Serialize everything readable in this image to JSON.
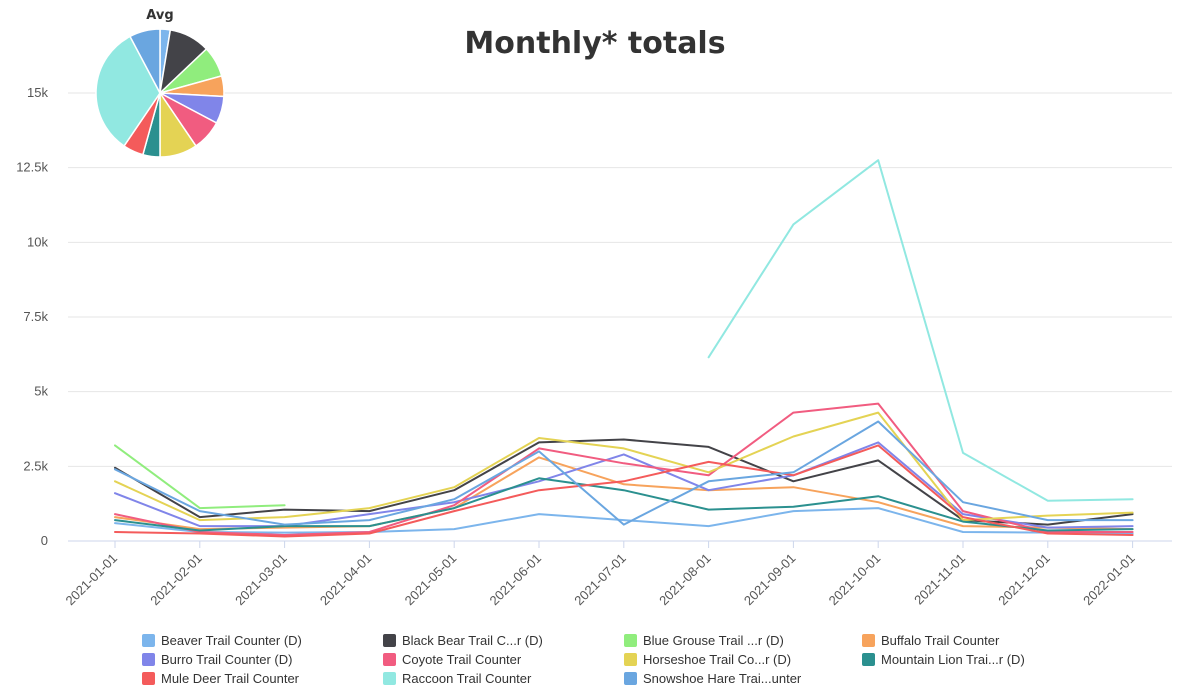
{
  "chart_data": {
    "type": "line",
    "title": "Monthly* totals",
    "x": [
      "2021-01-01",
      "2021-02-01",
      "2021-03-01",
      "2021-04-01",
      "2021-05-01",
      "2021-06-01",
      "2021-07-01",
      "2021-08-01",
      "2021-09-01",
      "2021-10-01",
      "2021-11-01",
      "2021-12-01",
      "2022-01-01"
    ],
    "ylim": [
      0,
      15000
    ],
    "yticks": [
      {
        "value": 0,
        "label": "0"
      },
      {
        "value": 2500,
        "label": "2.5k"
      },
      {
        "value": 5000,
        "label": "5k"
      },
      {
        "value": 7500,
        "label": "7.5k"
      },
      {
        "value": 10000,
        "label": "10k"
      },
      {
        "value": 12500,
        "label": "12.5k"
      },
      {
        "value": 15000,
        "label": "15k"
      }
    ],
    "grid": true,
    "legend_position": "bottom",
    "series": [
      {
        "name": "Beaver Trail Counter (D)",
        "color": "#7cb5ec",
        "values": [
          600,
          300,
          280,
          300,
          400,
          900,
          700,
          500,
          1000,
          1100,
          300,
          280,
          250
        ]
      },
      {
        "name": "Black Bear Trail C...r (D)",
        "color": "#434348",
        "values": [
          2450,
          800,
          1050,
          1000,
          1700,
          3300,
          3400,
          3150,
          2000,
          2700,
          700,
          550,
          900
        ]
      },
      {
        "name": "Blue Grouse Trail ...r (D)",
        "color": "#90ed7d",
        "values": [
          3200,
          1100,
          1200,
          null,
          null,
          null,
          null,
          null,
          null,
          null,
          null,
          null,
          null
        ]
      },
      {
        "name": "Buffalo Trail Counter",
        "color": "#f7a35c",
        "values": [
          800,
          400,
          450,
          500,
          1100,
          2800,
          1900,
          1700,
          1800,
          1300,
          500,
          450,
          400
        ]
      },
      {
        "name": "Burro Trail Counter (D)",
        "color": "#8085e9",
        "values": [
          1600,
          500,
          500,
          900,
          1300,
          2000,
          2900,
          1700,
          2200,
          3300,
          900,
          450,
          500
        ]
      },
      {
        "name": "Coyote Trail Counter",
        "color": "#f15c80",
        "values": [
          900,
          300,
          200,
          300,
          1200,
          3100,
          2600,
          2200,
          4300,
          4600,
          1000,
          300,
          300
        ]
      },
      {
        "name": "Horseshoe Trail Co...r (D)",
        "color": "#e4d354",
        "values": [
          2000,
          700,
          800,
          1100,
          1800,
          3450,
          3100,
          2300,
          3500,
          4300,
          700,
          850,
          950
        ]
      },
      {
        "name": "Mountain Lion Trai...r (D)",
        "color": "#2b908f",
        "values": [
          700,
          350,
          500,
          500,
          1100,
          2100,
          1700,
          1050,
          1150,
          1500,
          650,
          350,
          400
        ]
      },
      {
        "name": "Mule Deer Trail Counter",
        "color": "#f45b5b",
        "values": [
          300,
          250,
          150,
          250,
          1000,
          1700,
          2000,
          2650,
          2200,
          3200,
          800,
          250,
          200
        ]
      },
      {
        "name": "Raccoon Trail Counter",
        "color": "#91e8e1",
        "values": [
          null,
          null,
          null,
          null,
          null,
          null,
          null,
          6150,
          10600,
          12750,
          2950,
          1350,
          1400
        ]
      },
      {
        "name": "Snowshoe Hare Trai...unter",
        "color": "#6aa6e0",
        "values": [
          2400,
          1000,
          550,
          700,
          1400,
          3000,
          550,
          2000,
          2300,
          4000,
          1300,
          700,
          700
        ]
      }
    ],
    "pie": {
      "title": "Avg",
      "slices": [
        {
          "name": "Beaver Trail Counter (D)",
          "value": 3
        },
        {
          "name": "Black Bear Trail C...r (D)",
          "value": 12
        },
        {
          "name": "Blue Grouse Trail ...r (D)",
          "value": 9
        },
        {
          "name": "Buffalo Trail Counter",
          "value": 6
        },
        {
          "name": "Burro Trail Counter (D)",
          "value": 8
        },
        {
          "name": "Coyote Trail Counter",
          "value": 9
        },
        {
          "name": "Horseshoe Trail Co...r (D)",
          "value": 11
        },
        {
          "name": "Mountain Lion Trai...r (D)",
          "value": 5
        },
        {
          "name": "Mule Deer Trail Counter",
          "value": 6
        },
        {
          "name": "Raccoon Trail Counter",
          "value": 38
        },
        {
          "name": "Snowshoe Hare Trai...unter",
          "value": 9
        }
      ]
    }
  }
}
